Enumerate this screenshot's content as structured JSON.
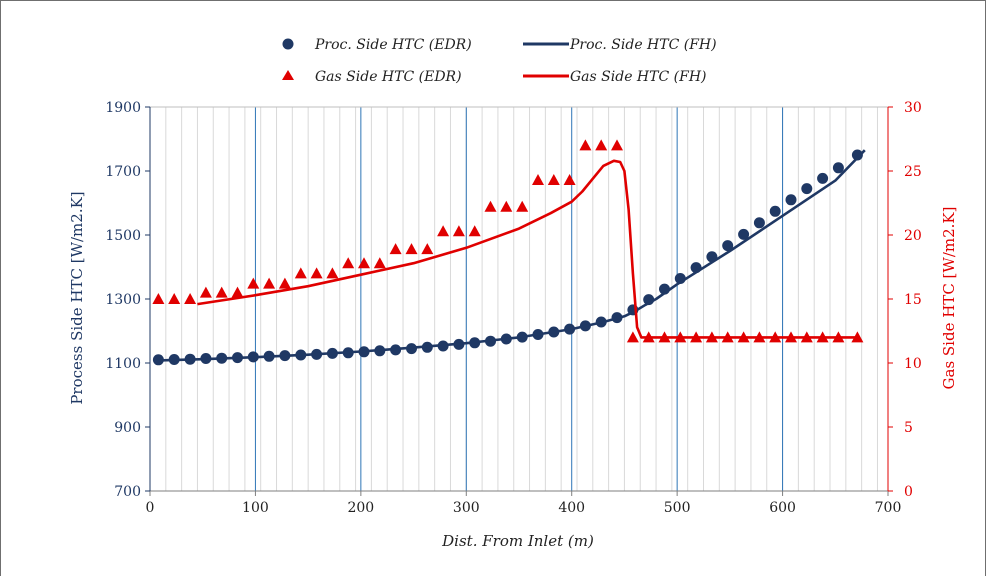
{
  "chart_data": {
    "type": "line+scatter (dual axis)",
    "xlabel": "Dist. From Inlet (m)",
    "ylabel_left": "Process Side HTC [W/m2.K]",
    "ylabel_right": "Gas Side HTC [W/m2.K]",
    "xlim": [
      0,
      700
    ],
    "ylim_left": [
      700,
      1900
    ],
    "ylim_right": [
      0,
      30
    ],
    "x_ticks": [
      "0",
      "100",
      "200",
      "300",
      "400",
      "500",
      "600",
      "700"
    ],
    "y_left_ticks": [
      "700",
      "900",
      "1100",
      "1300",
      "1500",
      "1700",
      "1900"
    ],
    "y_right_ticks": [
      "0",
      "5",
      "10",
      "15",
      "20",
      "25",
      "30"
    ],
    "grid": {
      "vertical_major_every": 100,
      "vertical_minor_every": 15,
      "horizontal": false
    },
    "legend_position": "top-center",
    "colors": {
      "process": "#1f3864",
      "gas": "#e00000",
      "major_grid": "#2e75b6",
      "minor_grid": "#d9d9d9",
      "left_axis_text": "#1f3864",
      "right_axis_text": "#e00000"
    },
    "series": [
      {
        "name": "Proc. Side HTC (EDR)",
        "axis": "left",
        "style": "circle",
        "color": "#1f3864",
        "x": [
          8,
          23,
          38,
          53,
          68,
          83,
          98,
          113,
          128,
          143,
          158,
          173,
          188,
          203,
          218,
          233,
          248,
          263,
          278,
          293,
          308,
          323,
          338,
          353,
          368,
          383,
          398,
          413,
          428,
          443,
          458,
          473,
          488,
          503,
          518,
          533,
          548,
          563,
          578,
          593,
          608,
          623,
          638,
          653,
          671
        ],
        "y": [
          1110,
          1111,
          1112,
          1114,
          1115,
          1117,
          1119,
          1121,
          1123,
          1125,
          1127,
          1130,
          1132,
          1135,
          1138,
          1141,
          1145,
          1149,
          1153,
          1158,
          1163,
          1168,
          1175,
          1181,
          1189,
          1197,
          1206,
          1216,
          1228,
          1242,
          1266,
          1298,
          1331,
          1364,
          1398,
          1432,
          1467,
          1502,
          1538,
          1574,
          1610,
          1645,
          1677,
          1710,
          1750
        ]
      },
      {
        "name": "Proc. Side HTC (FH)",
        "axis": "left",
        "style": "line",
        "color": "#1f3864",
        "x": [
          8,
          50,
          100,
          150,
          200,
          250,
          300,
          350,
          400,
          430,
          450,
          460,
          470,
          480,
          500,
          550,
          600,
          650,
          678
        ],
        "y": [
          1108,
          1112,
          1118,
          1126,
          1136,
          1148,
          1162,
          1180,
          1206,
          1228,
          1246,
          1262,
          1282,
          1300,
          1346,
          1450,
          1560,
          1670,
          1765
        ]
      },
      {
        "name": "Gas Side HTC (EDR)",
        "axis": "right",
        "style": "triangle",
        "color": "#e00000",
        "x": [
          8,
          23,
          38,
          53,
          68,
          83,
          98,
          113,
          128,
          143,
          158,
          173,
          188,
          203,
          218,
          233,
          248,
          263,
          278,
          293,
          308,
          323,
          338,
          353,
          368,
          383,
          398,
          413,
          428,
          443,
          458,
          473,
          488,
          503,
          518,
          533,
          548,
          563,
          578,
          593,
          608,
          623,
          638,
          653,
          671
        ],
        "y": [
          15.0,
          15.0,
          15.0,
          15.5,
          15.5,
          15.5,
          16.2,
          16.2,
          16.2,
          17.0,
          17.0,
          17.0,
          17.8,
          17.8,
          17.8,
          18.9,
          18.9,
          18.9,
          20.3,
          20.3,
          20.3,
          22.2,
          22.2,
          22.2,
          24.3,
          24.3,
          24.3,
          27.0,
          27.0,
          27.0,
          12.0,
          12.0,
          12.0,
          12.0,
          12.0,
          12.0,
          12.0,
          12.0,
          12.0,
          12.0,
          12.0,
          12.0,
          12.0,
          12.0,
          12.0
        ]
      },
      {
        "name": "Gas Side HTC (FH)",
        "axis": "right",
        "style": "line",
        "color": "#e00000",
        "x": [
          45,
          100,
          150,
          200,
          250,
          300,
          350,
          380,
          400,
          410,
          420,
          430,
          440,
          446,
          450,
          454,
          458,
          462,
          466,
          470,
          480,
          500,
          550,
          600,
          650,
          672
        ],
        "y": [
          14.6,
          15.3,
          16.0,
          16.9,
          17.8,
          19.0,
          20.5,
          21.7,
          22.6,
          23.4,
          24.4,
          25.4,
          25.8,
          25.7,
          25.0,
          22.0,
          17.0,
          12.8,
          12.0,
          12.0,
          12.0,
          12.0,
          12.0,
          12.0,
          12.0,
          12.0
        ]
      }
    ]
  }
}
